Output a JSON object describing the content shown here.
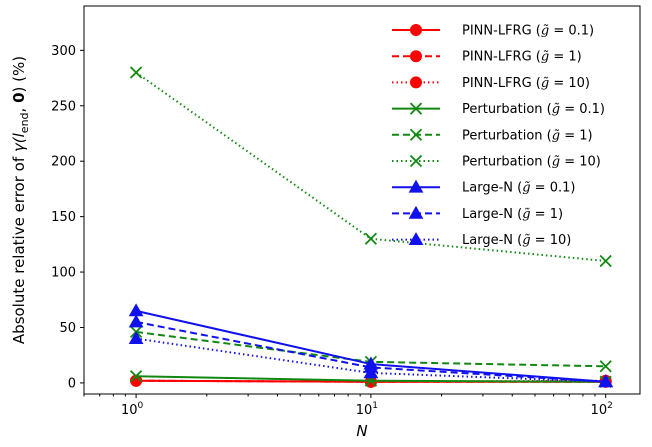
{
  "chart_data": {
    "type": "line",
    "xlabel": "N",
    "ylabel": "Absolute relative error of γ(l_end, 0) (%)",
    "ylabel_parts": {
      "prefix": "Absolute relative error of ",
      "func": "γ(",
      "l": "l",
      "sub": "end",
      "comma": ", ",
      "zero": "0",
      "suffix": ") (%)"
    },
    "x_scale": "log",
    "x": [
      1,
      10,
      100
    ],
    "xlim": [
      0.6,
      140
    ],
    "ylim": [
      -10,
      340
    ],
    "x_ticks": [
      {
        "value": 1,
        "base": "10",
        "exp": "0"
      },
      {
        "value": 10,
        "base": "10",
        "exp": "1"
      },
      {
        "value": 100,
        "base": "10",
        "exp": "2"
      }
    ],
    "y_ticks": [
      0,
      50,
      100,
      150,
      200,
      250,
      300
    ],
    "grid": false,
    "legend_position": "upper-right",
    "colors": {
      "pinn": "#ff0000",
      "pert": "#118811",
      "large": "#1111ee"
    },
    "series": [
      {
        "name": "PINN-LFRG",
        "gbar": "0.1",
        "values": [
          2,
          1,
          1
        ],
        "color": "#ff0000",
        "dash": "solid",
        "marker": "circle"
      },
      {
        "name": "PINN-LFRG",
        "gbar": "1",
        "values": [
          2,
          1,
          1
        ],
        "color": "#ff0000",
        "dash": "dashed",
        "marker": "circle"
      },
      {
        "name": "PINN-LFRG",
        "gbar": "10",
        "values": [
          2,
          1,
          2
        ],
        "color": "#ff0000",
        "dash": "dotted",
        "marker": "circle"
      },
      {
        "name": "Perturbation",
        "gbar": "0.1",
        "values": [
          6,
          2,
          1
        ],
        "color": "#118811",
        "dash": "solid",
        "marker": "x"
      },
      {
        "name": "Perturbation",
        "gbar": "1",
        "values": [
          46,
          19,
          15
        ],
        "color": "#118811",
        "dash": "dashed",
        "marker": "x"
      },
      {
        "name": "Perturbation",
        "gbar": "10",
        "values": [
          280,
          130,
          110
        ],
        "color": "#118811",
        "dash": "dotted",
        "marker": "x"
      },
      {
        "name": "Large-N",
        "gbar": "0.1",
        "values": [
          65,
          17,
          1
        ],
        "color": "#1111ee",
        "dash": "solid",
        "marker": "triangle"
      },
      {
        "name": "Large-N",
        "gbar": "1",
        "values": [
          55,
          14,
          1
        ],
        "color": "#1111ee",
        "dash": "dashed",
        "marker": "triangle"
      },
      {
        "name": "Large-N",
        "gbar": "10",
        "values": [
          40,
          9,
          1
        ],
        "color": "#1111ee",
        "dash": "dotted",
        "marker": "triangle"
      }
    ],
    "legend_gbar_symbol": "g̃",
    "legend_eq": " = "
  }
}
